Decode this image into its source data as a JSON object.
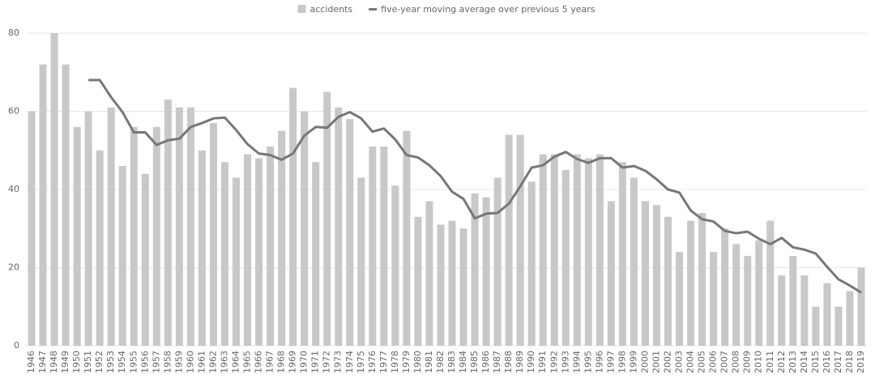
{
  "chart_data": {
    "type": "bar_line",
    "categories": [
      "1946",
      "1947",
      "1948",
      "1949",
      "1950",
      "1951",
      "1952",
      "1953",
      "1954",
      "1955",
      "1956",
      "1957",
      "1958",
      "1959",
      "1960",
      "1961",
      "1962",
      "1963",
      "1964",
      "1965",
      "1966",
      "1967",
      "1968",
      "1969",
      "1970",
      "1971",
      "1972",
      "1973",
      "1974",
      "1975",
      "1976",
      "1977",
      "1978",
      "1979",
      "1980",
      "1981",
      "1982",
      "1983",
      "1984",
      "1985",
      "1986",
      "1987",
      "1988",
      "1989",
      "1990",
      "1991",
      "1992",
      "1993",
      "1994",
      "1995",
      "1996",
      "1997",
      "1998",
      "1999",
      "2000",
      "2001",
      "2002",
      "2003",
      "2004",
      "2005",
      "2006",
      "2007",
      "2008",
      "2009",
      "2010",
      "2011",
      "2012",
      "2013",
      "2014",
      "2015",
      "2016",
      "2017",
      "2018",
      "2019"
    ],
    "series": [
      {
        "name": "accidents",
        "color": "#c8c8c8",
        "kind": "bar",
        "values": [
          60,
          72,
          80,
          72,
          56,
          60,
          50,
          61,
          46,
          56,
          44,
          56,
          63,
          61,
          61,
          50,
          57,
          47,
          43,
          49,
          48,
          51,
          55,
          66,
          60,
          47,
          65,
          61,
          58,
          43,
          51,
          51,
          41,
          55,
          33,
          37,
          31,
          32,
          30,
          39,
          38,
          43,
          54,
          54,
          42,
          49,
          49,
          45,
          49,
          48,
          49,
          37,
          47,
          43,
          37,
          36,
          33,
          24,
          32,
          34,
          24,
          30,
          26,
          23,
          27,
          32,
          18,
          23,
          18,
          10,
          16,
          10,
          14,
          20
        ]
      },
      {
        "name": "five-year moving average over previous 5 years",
        "color": "#777777",
        "kind": "line",
        "values": [
          null,
          null,
          null,
          null,
          null,
          68,
          68,
          63.6,
          59.8,
          54.6,
          54.6,
          51.4,
          52.6,
          53,
          56,
          57,
          58.2,
          58.4,
          55.2,
          51.6,
          49.2,
          48.8,
          47.6,
          49.2,
          53.8,
          56,
          55.8,
          58.6,
          59.8,
          58.2,
          54.8,
          55.6,
          52.8,
          48.8,
          48.2,
          46.2,
          43.4,
          39.4,
          37.6,
          32.6,
          33.8,
          34,
          36.4,
          40.8,
          45.6,
          46.2,
          48.4,
          49.6,
          47.8,
          46.8,
          48,
          48,
          45.6,
          46,
          44.8,
          42.6,
          40,
          39.2,
          34.6,
          32.4,
          31.8,
          29.4,
          28.8,
          29.2,
          27.4,
          26,
          27.6,
          25.2,
          24.6,
          23.6,
          20.2,
          17,
          15.4,
          13.6
        ]
      }
    ],
    "ylim": [
      0,
      80
    ],
    "yticks": [
      0,
      20,
      40,
      60,
      80
    ],
    "grid": true,
    "legend": "top"
  }
}
